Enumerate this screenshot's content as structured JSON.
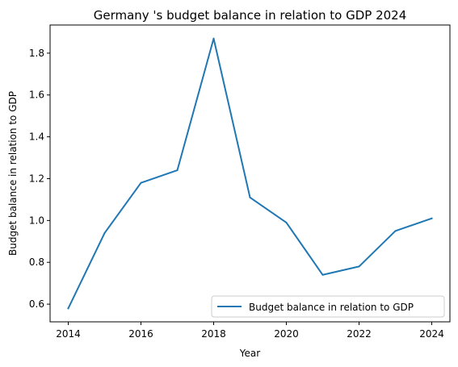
{
  "chart_data": {
    "type": "line",
    "title": "Germany 's budget balance in relation to GDP 2024",
    "xlabel": "Year",
    "ylabel": "Budget balance in relation to GDP",
    "x": [
      2014,
      2015,
      2016,
      2017,
      2018,
      2019,
      2020,
      2021,
      2022,
      2023,
      2024
    ],
    "series": [
      {
        "name": "Budget balance in relation to GDP",
        "color": "#1f77b4",
        "values": [
          0.58,
          0.94,
          1.18,
          1.24,
          1.87,
          1.11,
          0.99,
          0.74,
          0.78,
          0.95,
          1.01
        ]
      }
    ],
    "xticks": [
      "2014",
      "2016",
      "2018",
      "2020",
      "2022",
      "2024"
    ],
    "yticks": [
      "0.6",
      "0.8",
      "1.0",
      "1.2",
      "1.4",
      "1.6",
      "1.8"
    ],
    "xlim": [
      2013.5,
      2024.5
    ],
    "ylim": [
      0.5155,
      1.9345
    ],
    "grid": false,
    "legend_position": "lower-right"
  }
}
